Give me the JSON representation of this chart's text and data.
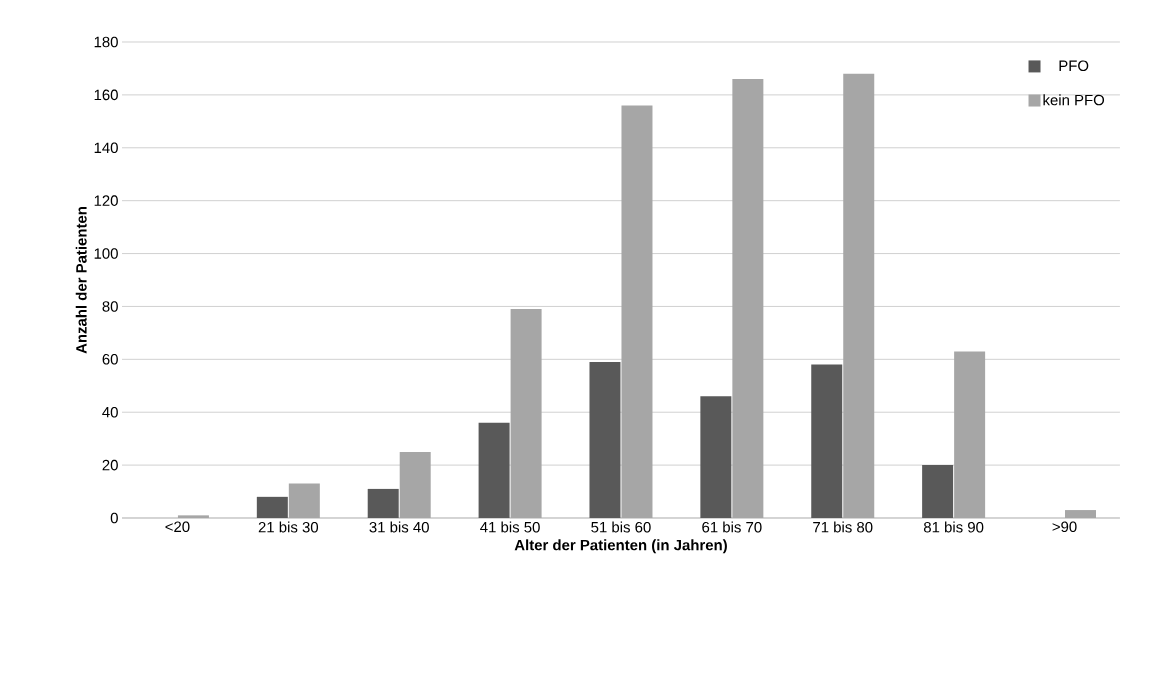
{
  "chart_data": {
    "type": "bar",
    "xlabel": "Alter der Patienten (in Jahren)",
    "ylabel": "Anzahl der Patienten",
    "categories": [
      "<20",
      "21 bis 30",
      "31 bis 40",
      "41 bis 50",
      "51 bis 60",
      "61 bis 70",
      "71 bis 80",
      "81 bis 90",
      ">90"
    ],
    "series": [
      {
        "name": "PFO",
        "color": "#595959",
        "values": [
          0,
          8,
          11,
          36,
          59,
          46,
          58,
          20,
          0
        ]
      },
      {
        "name": "kein PFO",
        "color": "#a6a6a6",
        "values": [
          1,
          13,
          25,
          79,
          156,
          166,
          168,
          63,
          3
        ]
      }
    ],
    "ylim": [
      0,
      180
    ],
    "yticks": [
      0,
      20,
      40,
      60,
      80,
      100,
      120,
      140,
      160,
      180
    ],
    "grid": "y",
    "legend": "top right"
  }
}
